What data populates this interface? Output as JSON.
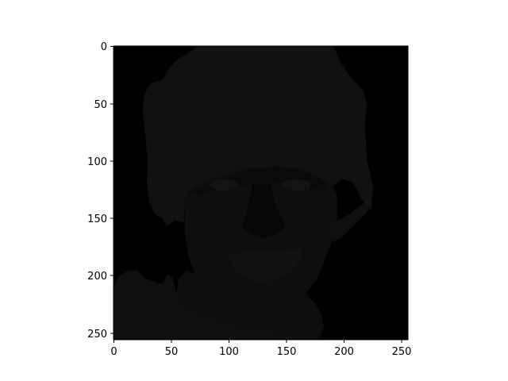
{
  "figure": {
    "image_description_label": "",
    "x_ticks": [
      "0",
      "50",
      "100",
      "150",
      "200",
      "250"
    ],
    "y_ticks": [
      "0",
      "50",
      "100",
      "150",
      "200",
      "250"
    ],
    "colors": {
      "background": "#000000",
      "face_mid": "#101010",
      "face_light": "#141414",
      "axis": "#000000"
    }
  },
  "chart_data": {
    "type": "image",
    "title": "",
    "xlabel": "",
    "ylabel": "",
    "xlim": [
      0,
      256
    ],
    "ylim": [
      256,
      0
    ],
    "x_ticks": [
      0,
      50,
      100,
      150,
      200,
      250
    ],
    "y_ticks": [
      0,
      50,
      100,
      150,
      200,
      250
    ],
    "grid": false,
    "legend": "none",
    "colormap": "gray"
  }
}
